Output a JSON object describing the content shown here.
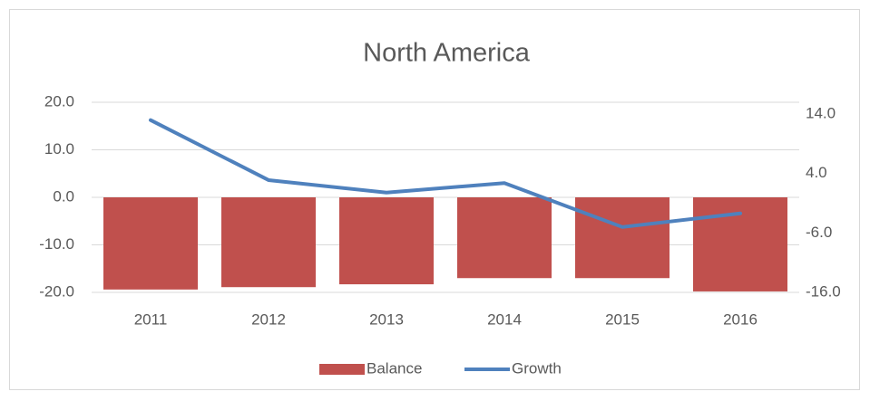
{
  "chart_data": {
    "type": "bar-line",
    "title": "North America",
    "categories": [
      "2011",
      "2012",
      "2013",
      "2014",
      "2015",
      "2016"
    ],
    "series": [
      {
        "name": "Balance",
        "type": "bar",
        "color": "#c0504d",
        "values": [
          -19.4,
          -18.9,
          -18.3,
          -17.0,
          -17.0,
          -19.8
        ]
      },
      {
        "name": "Growth",
        "type": "line",
        "axis": "y2",
        "color": "#4f81bd",
        "values": [
          13.0,
          2.9,
          0.8,
          2.4,
          -5.0,
          -2.7
        ]
      }
    ],
    "ylim": [
      -20,
      20
    ],
    "yticks": [
      {
        "value": -20,
        "label": "-20.0"
      },
      {
        "value": -10,
        "label": "-10.0"
      },
      {
        "value": 0,
        "label": "0.0"
      },
      {
        "value": 10,
        "label": "10.0"
      },
      {
        "value": 20,
        "label": "20.0"
      }
    ],
    "y2lim": [
      -16,
      16
    ],
    "y2ticks": [
      {
        "value": -16,
        "label": "-16.0"
      },
      {
        "value": -6,
        "label": "-6.0"
      },
      {
        "value": 4,
        "label": "4.0"
      },
      {
        "value": 14,
        "label": "14.0"
      }
    ],
    "grid": true,
    "legend": "bottom"
  }
}
